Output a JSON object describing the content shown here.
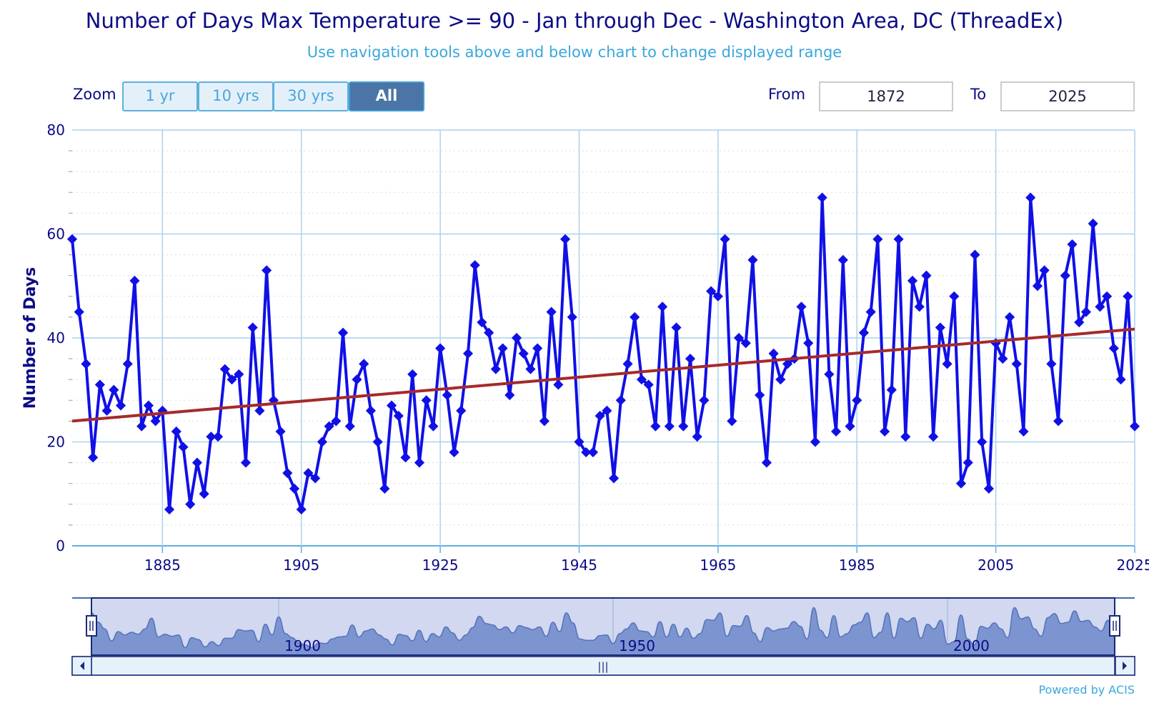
{
  "header": {
    "title": "Number of Days Max Temperature >= 90 - Jan through Dec - Washington Area, DC (ThreadEx)",
    "subtitle": "Use navigation tools above and below chart to change displayed range"
  },
  "controls": {
    "zoom_label": "Zoom",
    "zoom_buttons": [
      "1 yr",
      "10 yrs",
      "30 yrs",
      "All"
    ],
    "active_zoom": "All",
    "from_label": "From",
    "from_value": "1872",
    "to_label": "To",
    "to_value": "2025"
  },
  "footer": {
    "powered_by": "Powered by ACIS"
  },
  "chart_data": {
    "type": "line",
    "title": "Number of Days Max Temperature >= 90 - Jan through Dec - Washington Area, DC (ThreadEx)",
    "subtitle": "Use navigation tools above and below chart to change displayed range",
    "xlabel": "",
    "ylabel": "Number of Days",
    "xlim": [
      1872,
      2025
    ],
    "ylim": [
      0,
      80
    ],
    "x_ticks": [
      1885,
      1905,
      1925,
      1945,
      1965,
      1985,
      2005,
      2025
    ],
    "y_ticks": [
      0,
      20,
      40,
      60,
      80
    ],
    "grid": true,
    "legend": "none",
    "x_start": 1872,
    "series": [
      {
        "color": "#1010e6",
        "values": [
          59,
          45,
          35,
          17,
          31,
          26,
          30,
          27,
          35,
          51,
          23,
          27,
          24,
          26,
          7,
          22,
          19,
          8,
          16,
          10,
          21,
          21,
          34,
          32,
          33,
          16,
          42,
          26,
          53,
          28,
          22,
          14,
          11,
          7,
          14,
          13,
          20,
          23,
          24,
          41,
          23,
          32,
          35,
          26,
          20,
          11,
          27,
          25,
          17,
          33,
          16,
          28,
          23,
          38,
          29,
          18,
          26,
          37,
          54,
          43,
          41,
          34,
          38,
          29,
          40,
          37,
          34,
          38,
          24,
          45,
          31,
          59,
          44,
          20,
          18,
          18,
          25,
          26,
          13,
          28,
          35,
          44,
          32,
          31,
          23,
          46,
          23,
          42,
          23,
          36,
          21,
          28,
          49,
          48,
          59,
          24,
          40,
          39,
          55,
          29,
          16,
          37,
          32,
          35,
          36,
          46,
          39,
          20,
          67,
          33,
          22,
          55,
          23,
          28,
          41,
          45,
          59,
          22,
          30,
          59,
          21,
          51,
          46,
          52,
          21,
          42,
          35,
          48,
          12,
          16,
          56,
          20,
          11,
          39,
          36,
          44,
          35,
          22,
          67,
          50,
          53,
          35,
          24,
          52,
          58,
          43,
          45,
          62,
          46,
          48,
          38,
          32,
          48,
          23
        ]
      },
      {
        "color": "#a52a2a",
        "trend": [
          [
            1872,
            24.0
          ],
          [
            2025,
            41.7
          ]
        ]
      }
    ],
    "navigator": {
      "labels": [
        "1900",
        "1950",
        "2000"
      ],
      "scroll_glyph": "|||"
    }
  }
}
